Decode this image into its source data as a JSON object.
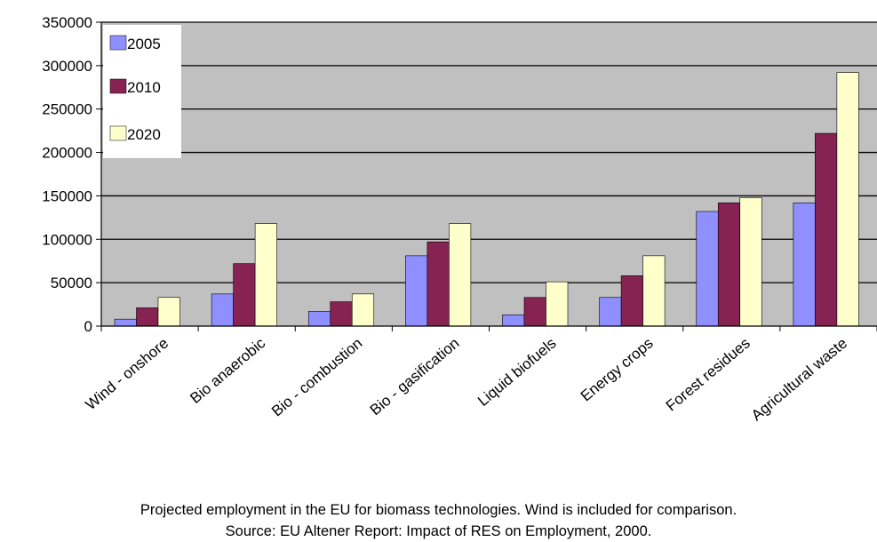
{
  "chart_data": {
    "type": "bar",
    "categories": [
      "Wind - onshore",
      "Bio anaerobic",
      "Bio - combustion",
      "Bio - gasification",
      "Liquid biofuels",
      "Energy crops",
      "Forest residues",
      "Agricultural waste"
    ],
    "series": [
      {
        "name": "2005",
        "color": "#8f8fff",
        "values": [
          8000,
          37000,
          17000,
          81000,
          13000,
          33000,
          132000,
          142000
        ]
      },
      {
        "name": "2010",
        "color": "#862352",
        "values": [
          21000,
          72000,
          28000,
          97000,
          33000,
          58000,
          142000,
          222000
        ]
      },
      {
        "name": "2020",
        "color": "#ffffcc",
        "values": [
          33000,
          118000,
          37000,
          118000,
          51000,
          81000,
          148000,
          292000
        ]
      }
    ],
    "yticks": [
      "350000",
      "300000",
      "250000",
      "200000",
      "150000",
      "100000",
      "50000",
      "0"
    ],
    "ylim": [
      0,
      350000
    ],
    "grid": true,
    "legend_position": "top-left",
    "plot_background": "#c0c0c0"
  },
  "caption": {
    "line1": "Projected employment in the EU for biomass technologies. Wind is included for comparison.",
    "line2": "Source: EU Altener Report: Impact of RES on Employment, 2000."
  }
}
